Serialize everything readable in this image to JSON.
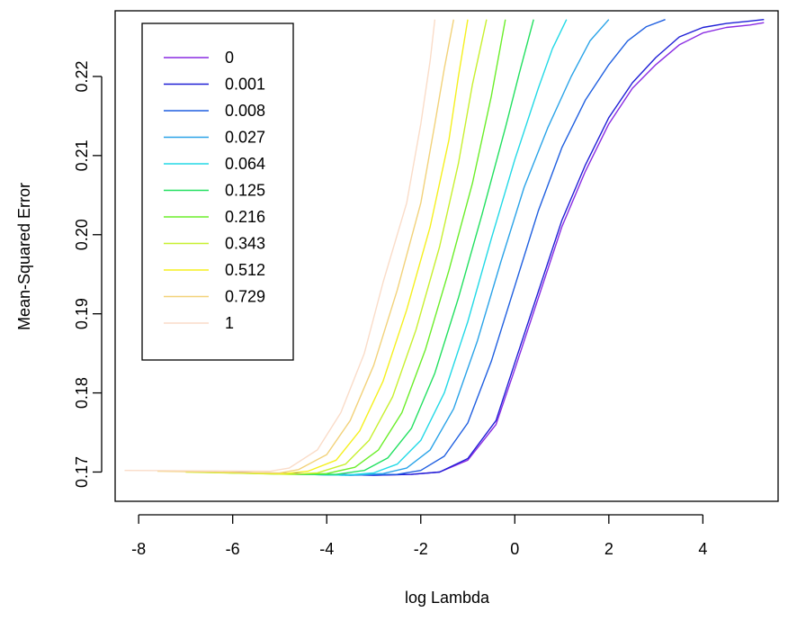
{
  "chart_data": {
    "type": "line",
    "title": "",
    "xlabel": "log Lambda",
    "ylabel": "Mean-Squared Error",
    "xlim": [
      -8.5,
      5.6
    ],
    "ylim": [
      0.1663,
      0.2283
    ],
    "xticks": [
      -8,
      -6,
      -4,
      -2,
      0,
      2,
      4
    ],
    "xtick_labels": [
      "-8",
      "-6",
      "-4",
      "-2",
      "0",
      "2",
      "4"
    ],
    "yticks": [
      0.17,
      0.18,
      0.19,
      0.2,
      0.21,
      0.22
    ],
    "ytick_labels": [
      "0.17",
      "0.18",
      "0.19",
      "0.20",
      "0.21",
      "0.22"
    ],
    "grid": false,
    "legend_position": "top-left",
    "series": [
      {
        "name": "0",
        "color": "#8A2BE2",
        "x": [
          -6.2,
          -4.0,
          -3.0,
          -2.2,
          -1.6,
          -1.0,
          -0.4,
          0.0,
          0.5,
          1.0,
          1.5,
          2.0,
          2.5,
          3.0,
          3.5,
          4.0,
          4.5,
          5.0,
          5.3
        ],
        "y": [
          0.17,
          0.1697,
          0.1696,
          0.1697,
          0.17,
          0.1715,
          0.176,
          0.183,
          0.192,
          0.201,
          0.208,
          0.214,
          0.2185,
          0.2215,
          0.224,
          0.2255,
          0.2262,
          0.2265,
          0.2268
        ]
      },
      {
        "name": "0.001",
        "color": "#1F1FD6",
        "x": [
          -6.2,
          -4.0,
          -3.0,
          -2.2,
          -1.6,
          -1.0,
          -0.4,
          0.0,
          0.5,
          1.0,
          1.5,
          2.0,
          2.5,
          3.0,
          3.5,
          4.0,
          4.5,
          5.0,
          5.3
        ],
        "y": [
          0.17,
          0.1697,
          0.1696,
          0.1697,
          0.17,
          0.1717,
          0.1765,
          0.1838,
          0.1928,
          0.2018,
          0.2088,
          0.2148,
          0.2192,
          0.2224,
          0.225,
          0.2262,
          0.2267,
          0.227,
          0.2272
        ]
      },
      {
        "name": "0.008",
        "color": "#1F5FE0",
        "x": [
          -6.4,
          -4.5,
          -3.5,
          -2.5,
          -2.0,
          -1.5,
          -1.0,
          -0.5,
          0.0,
          0.5,
          1.0,
          1.5,
          2.0,
          2.4,
          2.8,
          3.2
        ],
        "y": [
          0.17,
          0.1697,
          0.1696,
          0.1697,
          0.1702,
          0.172,
          0.1762,
          0.184,
          0.1935,
          0.203,
          0.211,
          0.217,
          0.2215,
          0.2245,
          0.2263,
          0.2272
        ]
      },
      {
        "name": "0.027",
        "color": "#2AA3E8",
        "x": [
          -6.5,
          -4.5,
          -3.5,
          -2.8,
          -2.3,
          -1.8,
          -1.3,
          -0.8,
          -0.3,
          0.2,
          0.7,
          1.2,
          1.6,
          2.0
        ],
        "y": [
          0.17,
          0.1697,
          0.1696,
          0.1698,
          0.1705,
          0.1728,
          0.178,
          0.1865,
          0.1965,
          0.206,
          0.2135,
          0.22,
          0.2245,
          0.2272
        ]
      },
      {
        "name": "0.064",
        "color": "#22D9E6",
        "x": [
          -6.6,
          -4.5,
          -3.6,
          -3.0,
          -2.5,
          -2.0,
          -1.5,
          -1.0,
          -0.5,
          0.0,
          0.5,
          0.8,
          1.1
        ],
        "y": [
          0.17,
          0.1697,
          0.1696,
          0.1699,
          0.171,
          0.174,
          0.18,
          0.189,
          0.1995,
          0.2095,
          0.2185,
          0.2235,
          0.2272
        ]
      },
      {
        "name": "0.125",
        "color": "#22E060",
        "x": [
          -6.7,
          -4.6,
          -3.8,
          -3.2,
          -2.7,
          -2.2,
          -1.7,
          -1.2,
          -0.7,
          -0.2,
          0.1,
          0.4
        ],
        "y": [
          0.17,
          0.1697,
          0.1697,
          0.1702,
          0.1718,
          0.1755,
          0.1825,
          0.192,
          0.2025,
          0.2135,
          0.2205,
          0.2272
        ]
      },
      {
        "name": "0.216",
        "color": "#6BEE2A",
        "x": [
          -6.8,
          -4.7,
          -4.0,
          -3.4,
          -2.9,
          -2.4,
          -1.9,
          -1.4,
          -0.9,
          -0.5,
          -0.2
        ],
        "y": [
          0.17,
          0.1697,
          0.1698,
          0.1706,
          0.1728,
          0.1775,
          0.1855,
          0.1955,
          0.2065,
          0.2175,
          0.2272
        ]
      },
      {
        "name": "0.343",
        "color": "#C8F030",
        "x": [
          -7.0,
          -4.8,
          -4.2,
          -3.6,
          -3.1,
          -2.6,
          -2.1,
          -1.6,
          -1.2,
          -0.9,
          -0.6
        ],
        "y": [
          0.17,
          0.1697,
          0.1699,
          0.171,
          0.174,
          0.1795,
          0.188,
          0.1985,
          0.209,
          0.219,
          0.2272
        ]
      },
      {
        "name": "0.512",
        "color": "#F5F01F",
        "x": [
          -7.3,
          -4.9,
          -4.4,
          -3.8,
          -3.3,
          -2.8,
          -2.3,
          -1.8,
          -1.4,
          -1.2,
          -1.0
        ],
        "y": [
          0.1701,
          0.1698,
          0.1701,
          0.1715,
          0.1752,
          0.1815,
          0.1905,
          0.201,
          0.212,
          0.22,
          0.2272
        ]
      },
      {
        "name": "0.729",
        "color": "#F2D27A",
        "x": [
          -7.6,
          -5.0,
          -4.6,
          -4.0,
          -3.5,
          -3.0,
          -2.5,
          -2.0,
          -1.7,
          -1.5,
          -1.3
        ],
        "y": [
          0.1701,
          0.1699,
          0.1703,
          0.1722,
          0.1765,
          0.1835,
          0.193,
          0.204,
          0.214,
          0.221,
          0.2272
        ]
      },
      {
        "name": "1",
        "color": "#FADCC8",
        "x": [
          -8.3,
          -5.2,
          -4.8,
          -4.2,
          -3.7,
          -3.2,
          -2.8,
          -2.3,
          -2.0,
          -1.8,
          -1.7
        ],
        "y": [
          0.1702,
          0.1701,
          0.1705,
          0.1728,
          0.1775,
          0.185,
          0.194,
          0.204,
          0.214,
          0.222,
          0.2272
        ]
      }
    ]
  }
}
